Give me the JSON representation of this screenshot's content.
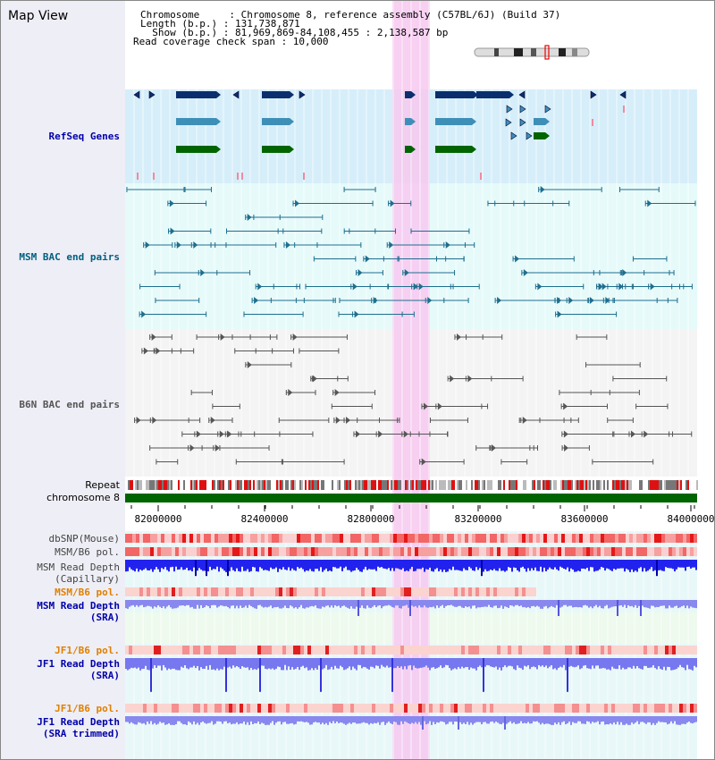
{
  "title": "Map View",
  "info": {
    "line1": "Chromosome     : Chromosome 8, reference assembly (C57BL/6J) (Build 37)",
    "line2": "Length (b.p.) : 131,738,871",
    "line3": "  Show (b.p.) : 81,969,869-84,108,455 : 2,138,587 bp",
    "line4": "Read coverage check span : 10,000"
  },
  "tracks": {
    "refseq": "RefSeq Genes",
    "msm_bac": "MSM BAC end pairs",
    "b6n_bac": "B6N BAC end pairs",
    "repeat": "Repeat",
    "chromosome": "chromosome 8",
    "dbsnp": "dbSNP(Mouse)",
    "msm_pol": "MSM/B6 pol.",
    "msm_depth_cap_1": "MSM Read Depth",
    "msm_depth_cap_2": "(Capillary)",
    "msm_pol2": "MSM/B6 pol.",
    "msm_depth_sra_1": "MSM Read Depth",
    "msm_depth_sra_2": "(SRA)",
    "jf1_pol": "JF1/B6 pol.",
    "jf1_depth_sra_1": "JF1 Read Depth",
    "jf1_depth_sra_2": "(SRA)",
    "jf1_pol2": "JF1/B6 pol.",
    "jf1_trim_1": "JF1 Read Depth",
    "jf1_trim_2": "(SRA trimmed)"
  },
  "axis": {
    "ticks": [
      "82000000",
      "82400000",
      "82800000",
      "83200000",
      "83600000",
      "84000000"
    ]
  },
  "colors": {
    "refseq_label": "#0000aa",
    "msm_label": "#006080",
    "b6n_label": "#555555",
    "orange_label": "#e08000",
    "highlight": "#f7c8f0",
    "chrom_green": "#006400"
  }
}
